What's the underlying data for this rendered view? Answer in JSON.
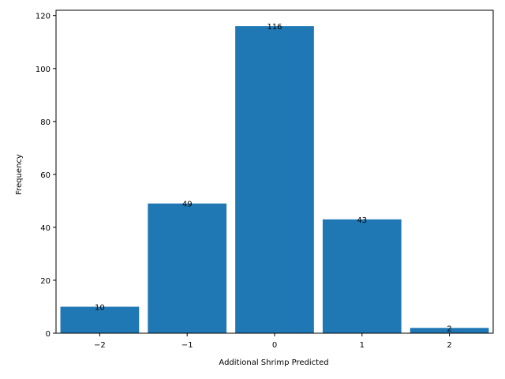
{
  "chart_data": {
    "type": "bar",
    "categories": [
      "−2",
      "−1",
      "0",
      "1",
      "2"
    ],
    "x": [
      -2,
      -1,
      0,
      1,
      2
    ],
    "values": [
      10,
      49,
      116,
      43,
      2
    ],
    "data_labels": [
      "10",
      "49",
      "116",
      "43",
      "2"
    ],
    "title": "",
    "xlabel": "Additional Shrimp Predicted",
    "ylabel": "Frequency",
    "xlim": [
      -2.5,
      2.5
    ],
    "ylim": [
      0,
      122
    ],
    "yticks": [
      0,
      20,
      40,
      60,
      80,
      100,
      120
    ],
    "ytick_labels": [
      "0",
      "20",
      "40",
      "60",
      "80",
      "100",
      "120"
    ],
    "bar_width": 0.9,
    "grid": false,
    "legend": "none",
    "bar_color": "#1f77b4"
  }
}
